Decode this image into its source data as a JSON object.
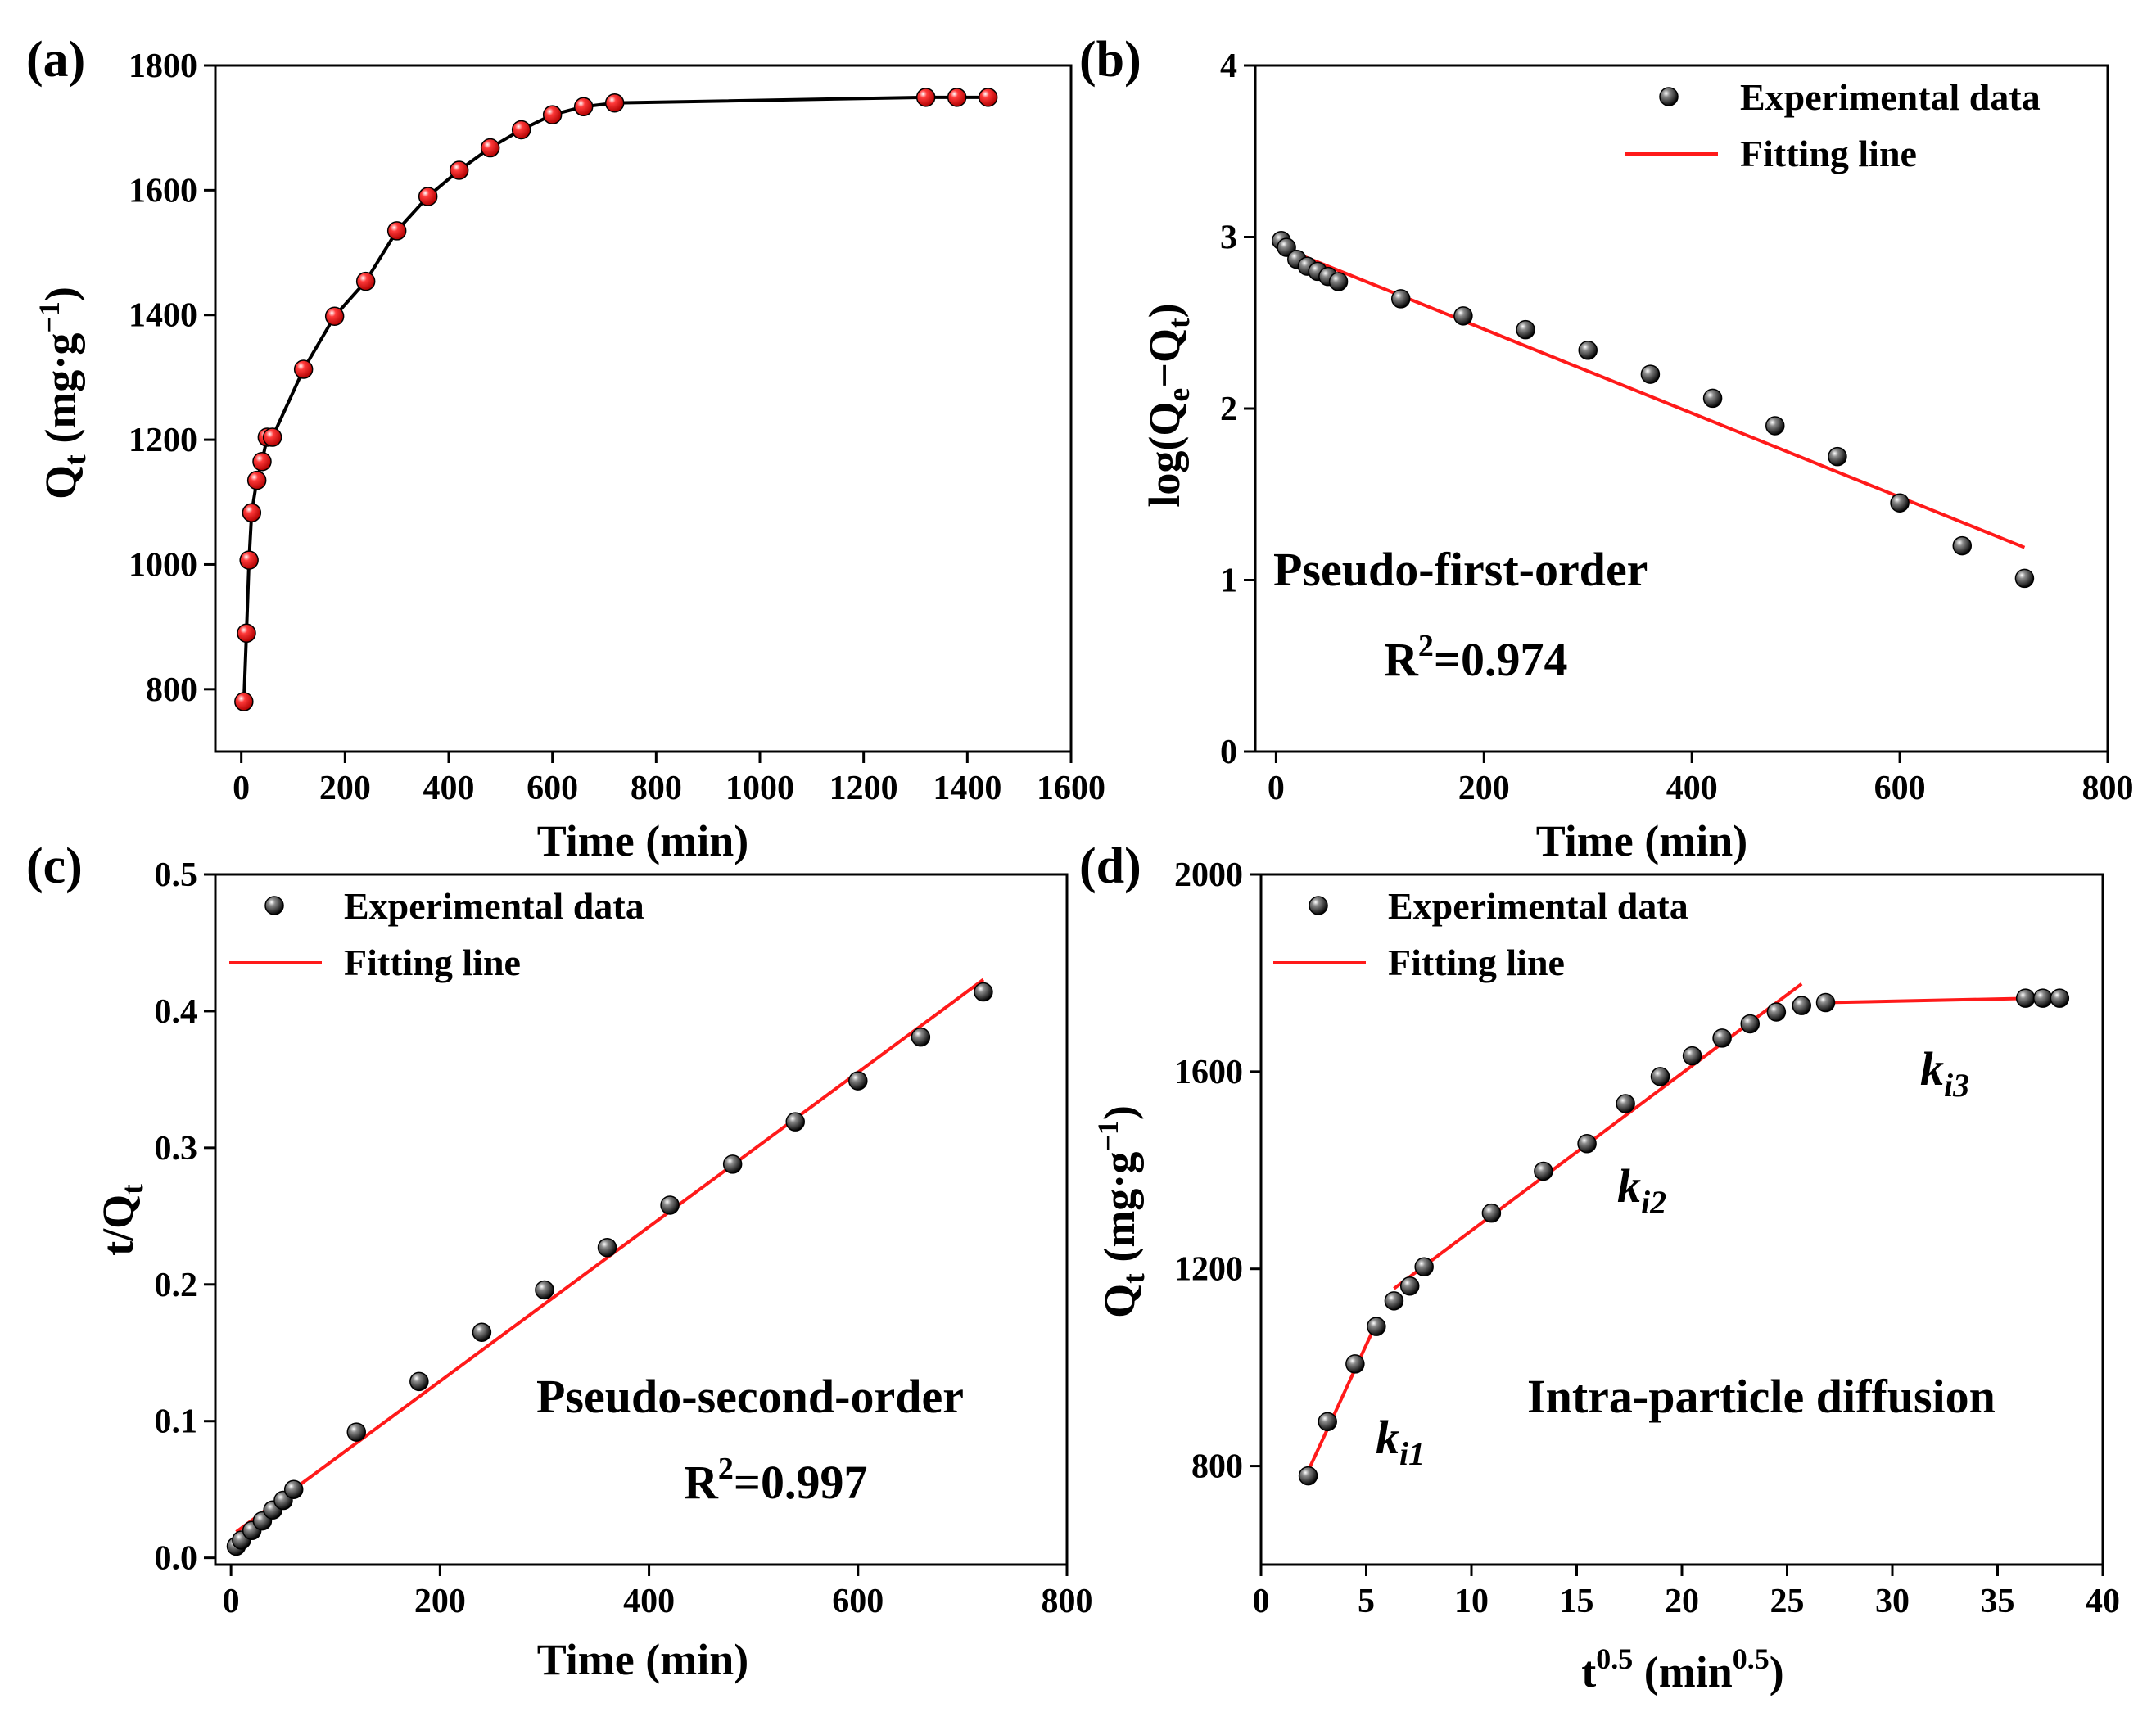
{
  "chart_data": [
    {
      "id": "a",
      "panel_label": "(a)",
      "type": "line",
      "xlabel": "Time (min)",
      "ylabel": "Q",
      "ylabel_sub": "t",
      "ylabel_unit_open": " (mg·g",
      "ylabel_unit_sup": "−1",
      "ylabel_unit_close": ")",
      "xlim": [
        -50,
        1600
      ],
      "ylim": [
        700,
        1800
      ],
      "xticks": [
        0,
        200,
        400,
        600,
        800,
        1000,
        1200,
        1400,
        1600
      ],
      "yticks": [
        800,
        1000,
        1200,
        1400,
        1600,
        1800
      ],
      "series": [
        {
          "name": "Experimental data",
          "marker_color": "#e8141b",
          "line_color": "#000000",
          "x": [
            5,
            10,
            15,
            20,
            30,
            40,
            50,
            60,
            120,
            180,
            240,
            300,
            360,
            420,
            480,
            540,
            600,
            660,
            720,
            1320,
            1380,
            1440
          ],
          "y": [
            780,
            890,
            1007,
            1083,
            1135,
            1165,
            1204,
            1204,
            1313,
            1398,
            1454,
            1535,
            1590,
            1632,
            1668,
            1697,
            1721,
            1734,
            1740,
            1749,
            1749,
            1749
          ]
        }
      ]
    },
    {
      "id": "b",
      "panel_label": "(b)",
      "type": "scatter",
      "xlabel": "Time (min)",
      "ylabel": "log(Q",
      "ylabel_sub1": "e",
      "ylabel_mid": "−Q",
      "ylabel_sub2": "t",
      "ylabel_close": ")",
      "xlim": [
        -20,
        800
      ],
      "ylim": [
        0,
        4
      ],
      "xticks": [
        0,
        200,
        400,
        600,
        800
      ],
      "yticks": [
        0,
        1,
        2,
        3,
        4
      ],
      "legend": {
        "position": "top-right",
        "entries": [
          "Experimental data",
          "Fitting line"
        ]
      },
      "annotations": {
        "model": "Pseudo-first-order",
        "r2_prefix": "R",
        "r2_sup": "2",
        "r2_value": "=0.974"
      },
      "series": [
        {
          "name": "Experimental data",
          "marker_color": "#1a1a1a",
          "x": [
            5,
            10,
            20,
            30,
            40,
            50,
            60,
            120,
            180,
            240,
            300,
            360,
            420,
            480,
            540,
            600,
            660,
            720
          ],
          "y": [
            2.98,
            2.94,
            2.87,
            2.83,
            2.8,
            2.77,
            2.74,
            2.64,
            2.54,
            2.46,
            2.34,
            2.2,
            2.06,
            1.9,
            1.72,
            1.45,
            1.2,
            1.01
          ]
        },
        {
          "name": "Fitting line",
          "line_color": "#ff1a1a",
          "x": [
            5,
            720
          ],
          "y": [
            2.94,
            1.19
          ]
        }
      ]
    },
    {
      "id": "c",
      "panel_label": "(c)",
      "type": "scatter",
      "xlabel": "Time (min)",
      "ylabel": "t/Q",
      "ylabel_sub": "t",
      "xlim": [
        -15,
        800
      ],
      "ylim": [
        -0.005,
        0.5
      ],
      "xticks": [
        0,
        200,
        400,
        600,
        800
      ],
      "yticks": [
        0.0,
        0.1,
        0.2,
        0.3,
        0.4,
        0.5
      ],
      "ytick_labels": [
        "0.0",
        "0.1",
        "0.2",
        "0.3",
        "0.4",
        "0.5"
      ],
      "legend": {
        "position": "top-left",
        "entries": [
          "Experimental data",
          "Fitting line"
        ]
      },
      "annotations": {
        "model": "Pseudo-second-order",
        "r2_prefix": "R",
        "r2_sup": "2",
        "r2_value": "=0.997"
      },
      "series": [
        {
          "name": "Experimental data",
          "marker_color": "#1a1a1a",
          "x": [
            5,
            10,
            20,
            30,
            40,
            50,
            60,
            120,
            180,
            240,
            300,
            360,
            420,
            480,
            540,
            600,
            660,
            720
          ],
          "y": [
            0.0085,
            0.013,
            0.02,
            0.027,
            0.035,
            0.042,
            0.05,
            0.092,
            0.129,
            0.165,
            0.196,
            0.227,
            0.258,
            0.288,
            0.319,
            0.349,
            0.381,
            0.414
          ]
        },
        {
          "name": "Fitting line",
          "line_color": "#ff1a1a",
          "x": [
            5,
            720
          ],
          "y": [
            0.019,
            0.423
          ]
        }
      ]
    },
    {
      "id": "d",
      "panel_label": "(d)",
      "type": "scatter",
      "xlabel": "t",
      "xlabel_sup": "0.5",
      "xlabel_unit_open": " (min",
      "xlabel_unit_sup": "0.5",
      "xlabel_unit_close": ")",
      "ylabel": "Q",
      "ylabel_sub": "t",
      "ylabel_unit_open": " (mg·g",
      "ylabel_unit_sup": "−1",
      "ylabel_unit_close": ")",
      "xlim": [
        0,
        40
      ],
      "ylim": [
        600,
        2000
      ],
      "xticks": [
        0,
        5,
        10,
        15,
        20,
        25,
        30,
        35,
        40
      ],
      "yticks": [
        800,
        1200,
        1600,
        2000
      ],
      "legend": {
        "position": "top-left",
        "entries": [
          "Experimental data",
          "Fitting line"
        ]
      },
      "annotations": {
        "model": "Intra-particle diffusion",
        "k_prefix": "k",
        "k1_sub": "i1",
        "k2_sub": "i2",
        "k3_sub": "i3"
      },
      "series": [
        {
          "name": "Experimental data",
          "marker_color": "#1a1a1a",
          "x": [
            2.24,
            3.16,
            4.47,
            5.48,
            6.32,
            7.07,
            7.75,
            10.95,
            13.42,
            15.49,
            17.32,
            18.97,
            20.49,
            21.91,
            23.24,
            24.49,
            25.69,
            26.83,
            36.33,
            37.15,
            37.95
          ],
          "y": [
            780,
            890,
            1007,
            1083,
            1135,
            1165,
            1204,
            1313,
            1398,
            1454,
            1535,
            1590,
            1632,
            1668,
            1697,
            1721,
            1734,
            1740,
            1749,
            1749,
            1749
          ]
        },
        {
          "name": "Fitting line segment 1",
          "line_color": "#ff1a1a",
          "x": [
            2.24,
            5.48
          ],
          "y": [
            790,
            1090
          ]
        },
        {
          "name": "Fitting line segment 2",
          "line_color": "#ff1a1a",
          "x": [
            6.32,
            25.69
          ],
          "y": [
            1160,
            1778
          ]
        },
        {
          "name": "Fitting line segment 3",
          "line_color": "#ff1a1a",
          "x": [
            26.83,
            37.95
          ],
          "y": [
            1740,
            1750
          ]
        }
      ]
    }
  ]
}
